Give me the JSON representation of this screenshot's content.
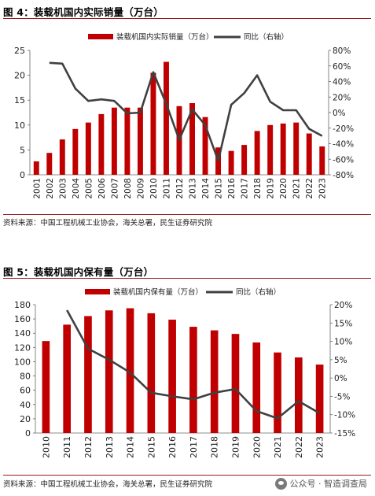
{
  "figure4": {
    "title": "图 4：装载机国内实际销量（万台）",
    "source": "资料来源：中国工程机械工业协会，海关总署，民生证券研究院",
    "chart_data": {
      "type": "bar",
      "categories": [
        "2001",
        "2002",
        "2003",
        "2004",
        "2005",
        "2006",
        "2007",
        "2008",
        "2009",
        "2010",
        "2011",
        "2012",
        "2013",
        "2014",
        "2015",
        "2016",
        "2017",
        "2018",
        "2019",
        "2020",
        "2021",
        "2022",
        "2023"
      ],
      "series": [
        {
          "name": "装载机国内实际销量（万台）",
          "type": "bar",
          "axis": "left",
          "color": "#c00000",
          "values": [
            2.7,
            4.4,
            7.1,
            9.2,
            10.5,
            12.2,
            13.5,
            13.5,
            13.5,
            20.5,
            22.7,
            13.8,
            14.4,
            11.6,
            5.5,
            4.8,
            6.0,
            8.8,
            10.0,
            10.3,
            10.5,
            8.3,
            5.7
          ]
        },
        {
          "name": "同比（右轴）",
          "type": "line",
          "axis": "right",
          "color": "#404040",
          "values": [
            null,
            64,
            63,
            31,
            15,
            17,
            15,
            -1,
            0,
            52,
            11,
            -35,
            4,
            -16,
            -62,
            10,
            25,
            48,
            14,
            3,
            3,
            -21,
            -30
          ]
        }
      ],
      "ylim": [
        0,
        25
      ],
      "yticks": [
        "0",
        "5",
        "10",
        "15",
        "20",
        "25"
      ],
      "y2lim": [
        -80,
        80
      ],
      "y2ticks": [
        "80%",
        "60%",
        "40%",
        "20%",
        "0%",
        "-20%",
        "-40%",
        "-60%",
        "-80%"
      ],
      "grid": false,
      "legend_position": "top"
    }
  },
  "figure5": {
    "title": "图 5：装载机国内保有量（万台）",
    "source": "资料来源：中国工程机械工业协会，海关总署，民生证券研究院",
    "chart_data": {
      "type": "bar",
      "categories": [
        "2010",
        "2011",
        "2012",
        "2013",
        "2014",
        "2015",
        "2016",
        "2017",
        "2018",
        "2019",
        "2020",
        "2021",
        "2022",
        "2023"
      ],
      "series": [
        {
          "name": "装载机国内保有量（万台）",
          "type": "bar",
          "axis": "left",
          "color": "#c00000",
          "values": [
            129,
            152,
            164,
            172,
            175,
            168,
            159,
            149,
            144,
            139,
            127,
            113,
            106,
            96
          ]
        },
        {
          "name": "同比（右轴）",
          "type": "line",
          "axis": "right",
          "color": "#404040",
          "values": [
            null,
            18.5,
            8,
            5,
            1.5,
            -4,
            -5,
            -5.8,
            -4,
            -3,
            -9,
            -11,
            -6.3,
            -9.6
          ]
        }
      ],
      "ylim": [
        0,
        180
      ],
      "yticks": [
        "0",
        "20",
        "40",
        "60",
        "80",
        "100",
        "120",
        "140",
        "160",
        "180"
      ],
      "y2lim": [
        -15,
        20
      ],
      "y2ticks": [
        "20%",
        "15%",
        "10%",
        "5%",
        "0%",
        "-5%",
        "-10%",
        "-15%"
      ],
      "grid": false,
      "legend_position": "top"
    }
  },
  "watermark": {
    "text": "公众号 · 智造调查局",
    "icon": "wechat-icon"
  }
}
